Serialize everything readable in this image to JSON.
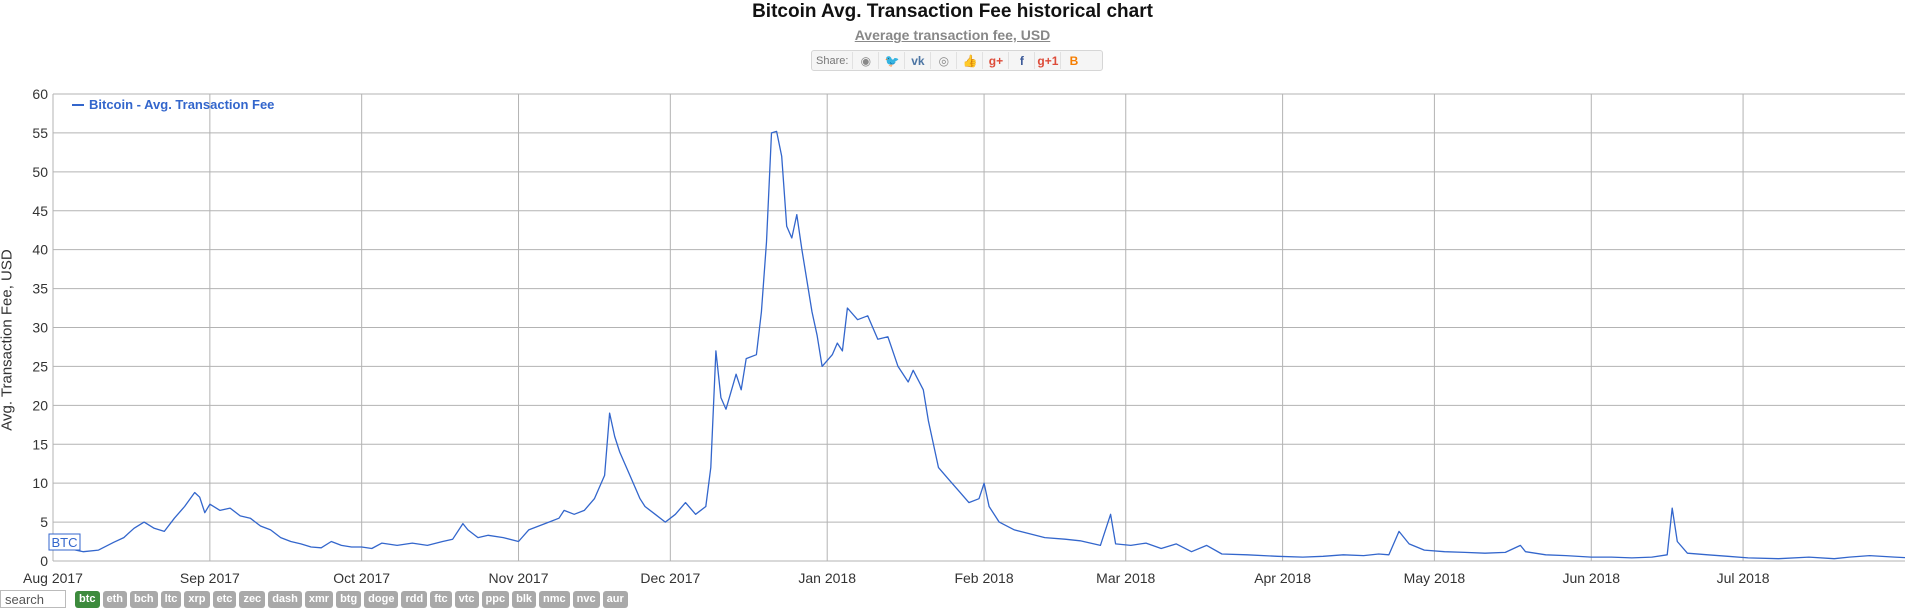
{
  "header": {
    "title": "Bitcoin Avg. Transaction Fee historical chart",
    "subtitle": "Average transaction fee, USD"
  },
  "share": {
    "label": "Share:",
    "buttons": [
      {
        "icon": "reddit-icon",
        "glyph": "◉",
        "color": "#888888"
      },
      {
        "icon": "twitter-icon",
        "glyph": "🐦",
        "color": "#1da1f2"
      },
      {
        "icon": "vk-icon",
        "glyph": "vk",
        "color": "#4c75a3"
      },
      {
        "icon": "weibo-icon",
        "glyph": "◎",
        "color": "#888888"
      },
      {
        "icon": "like-icon",
        "glyph": "👍",
        "color": "#3b5998"
      },
      {
        "icon": "google-plus-icon",
        "glyph": "g+",
        "color": "#dd4b39"
      },
      {
        "icon": "facebook-icon",
        "glyph": "f",
        "color": "#3b5998"
      },
      {
        "icon": "google-plus-one-icon",
        "glyph": "g+1",
        "color": "#dd4b39"
      },
      {
        "icon": "blogger-icon",
        "glyph": "B",
        "color": "#f57d00"
      }
    ]
  },
  "badge": "BTC",
  "search": {
    "placeholder": "search"
  },
  "coins": [
    "btc",
    "eth",
    "bch",
    "ltc",
    "xrp",
    "etc",
    "zec",
    "dash",
    "xmr",
    "btg",
    "doge",
    "rdd",
    "ftc",
    "vtc",
    "ppc",
    "blk",
    "nmc",
    "nvc",
    "aur"
  ],
  "active_coin": "btc",
  "colors": {
    "line": "#3366cc",
    "grid": "#b3b3b3",
    "legend": "#3366cc",
    "active_coin": "#3d8b3d"
  },
  "chart_data": {
    "type": "line",
    "title": "Bitcoin Avg. Transaction Fee historical chart",
    "subtitle": "Average transaction fee, USD",
    "ylabel": "Avg. Transaction Fee, USD",
    "xlabel": "",
    "ylim": [
      0,
      60
    ],
    "yticks": [
      0,
      5,
      10,
      15,
      20,
      25,
      30,
      35,
      40,
      45,
      50,
      55,
      60
    ],
    "xticks": [
      "Aug 2017",
      "Sep 2017",
      "Oct 2017",
      "Nov 2017",
      "Dec 2017",
      "Jan 2018",
      "Feb 2018",
      "Mar 2018",
      "Apr 2018",
      "May 2018",
      "Jun 2018",
      "Jul 2018"
    ],
    "grid": true,
    "legend": "top-left",
    "series": [
      {
        "name": "Bitcoin - Avg. Transaction Fee",
        "points": [
          [
            "2017-08-01",
            2.5
          ],
          [
            "2017-08-04",
            1.6
          ],
          [
            "2017-08-07",
            1.2
          ],
          [
            "2017-08-10",
            1.4
          ],
          [
            "2017-08-13",
            2.4
          ],
          [
            "2017-08-15",
            3.0
          ],
          [
            "2017-08-17",
            4.2
          ],
          [
            "2017-08-19",
            5.0
          ],
          [
            "2017-08-21",
            4.2
          ],
          [
            "2017-08-23",
            3.8
          ],
          [
            "2017-08-25",
            5.5
          ],
          [
            "2017-08-27",
            7.0
          ],
          [
            "2017-08-29",
            8.8
          ],
          [
            "2017-08-30",
            8.2
          ],
          [
            "2017-08-31",
            6.2
          ],
          [
            "2017-09-01",
            7.3
          ],
          [
            "2017-09-03",
            6.5
          ],
          [
            "2017-09-05",
            6.8
          ],
          [
            "2017-09-07",
            5.8
          ],
          [
            "2017-09-09",
            5.5
          ],
          [
            "2017-09-11",
            4.5
          ],
          [
            "2017-09-13",
            4.0
          ],
          [
            "2017-09-15",
            3.0
          ],
          [
            "2017-09-17",
            2.5
          ],
          [
            "2017-09-19",
            2.2
          ],
          [
            "2017-09-21",
            1.8
          ],
          [
            "2017-09-23",
            1.7
          ],
          [
            "2017-09-25",
            2.5
          ],
          [
            "2017-09-27",
            2.0
          ],
          [
            "2017-09-29",
            1.8
          ],
          [
            "2017-10-01",
            1.8
          ],
          [
            "2017-10-03",
            1.6
          ],
          [
            "2017-10-05",
            2.3
          ],
          [
            "2017-10-08",
            2.0
          ],
          [
            "2017-10-11",
            2.3
          ],
          [
            "2017-10-14",
            2.0
          ],
          [
            "2017-10-17",
            2.5
          ],
          [
            "2017-10-19",
            2.8
          ],
          [
            "2017-10-21",
            4.8
          ],
          [
            "2017-10-22",
            4.0
          ],
          [
            "2017-10-24",
            3.0
          ],
          [
            "2017-10-26",
            3.3
          ],
          [
            "2017-10-29",
            3.0
          ],
          [
            "2017-11-01",
            2.5
          ],
          [
            "2017-11-03",
            4.0
          ],
          [
            "2017-11-05",
            4.5
          ],
          [
            "2017-11-07",
            5.0
          ],
          [
            "2017-11-09",
            5.5
          ],
          [
            "2017-11-10",
            6.5
          ],
          [
            "2017-11-12",
            6.0
          ],
          [
            "2017-11-14",
            6.5
          ],
          [
            "2017-11-16",
            8.0
          ],
          [
            "2017-11-18",
            11.0
          ],
          [
            "2017-11-19",
            19.0
          ],
          [
            "2017-11-20",
            16.0
          ],
          [
            "2017-11-21",
            14.0
          ],
          [
            "2017-11-23",
            11.0
          ],
          [
            "2017-11-25",
            8.0
          ],
          [
            "2017-11-26",
            7.0
          ],
          [
            "2017-11-28",
            6.0
          ],
          [
            "2017-11-30",
            5.0
          ],
          [
            "2017-12-02",
            6.0
          ],
          [
            "2017-12-04",
            7.5
          ],
          [
            "2017-12-06",
            6.0
          ],
          [
            "2017-12-08",
            7.0
          ],
          [
            "2017-12-09",
            12.0
          ],
          [
            "2017-12-10",
            27.0
          ],
          [
            "2017-12-11",
            21.0
          ],
          [
            "2017-12-12",
            19.5
          ],
          [
            "2017-12-14",
            24.0
          ],
          [
            "2017-12-15",
            22.0
          ],
          [
            "2017-12-16",
            26.0
          ],
          [
            "2017-12-18",
            26.5
          ],
          [
            "2017-12-19",
            32.0
          ],
          [
            "2017-12-20",
            41.0
          ],
          [
            "2017-12-21",
            55.0
          ],
          [
            "2017-12-22",
            55.2
          ],
          [
            "2017-12-23",
            52.0
          ],
          [
            "2017-12-24",
            43.0
          ],
          [
            "2017-12-25",
            41.5
          ],
          [
            "2017-12-26",
            44.5
          ],
          [
            "2017-12-27",
            40.0
          ],
          [
            "2017-12-29",
            32.0
          ],
          [
            "2017-12-30",
            29.0
          ],
          [
            "2017-12-31",
            25.0
          ],
          [
            "2018-01-02",
            26.5
          ],
          [
            "2018-01-03",
            28.0
          ],
          [
            "2018-01-04",
            27.0
          ],
          [
            "2018-01-05",
            32.5
          ],
          [
            "2018-01-07",
            31.0
          ],
          [
            "2018-01-09",
            31.5
          ],
          [
            "2018-01-11",
            28.5
          ],
          [
            "2018-01-13",
            28.8
          ],
          [
            "2018-01-15",
            25.0
          ],
          [
            "2018-01-17",
            23.0
          ],
          [
            "2018-01-18",
            24.5
          ],
          [
            "2018-01-20",
            22.0
          ],
          [
            "2018-01-21",
            18.0
          ],
          [
            "2018-01-23",
            12.0
          ],
          [
            "2018-01-25",
            10.5
          ],
          [
            "2018-01-27",
            9.0
          ],
          [
            "2018-01-29",
            7.5
          ],
          [
            "2018-01-31",
            8.0
          ],
          [
            "2018-02-01",
            10.0
          ],
          [
            "2018-02-02",
            7.0
          ],
          [
            "2018-02-04",
            5.0
          ],
          [
            "2018-02-07",
            4.0
          ],
          [
            "2018-02-10",
            3.5
          ],
          [
            "2018-02-13",
            3.0
          ],
          [
            "2018-02-17",
            2.8
          ],
          [
            "2018-02-20",
            2.6
          ],
          [
            "2018-02-24",
            2.0
          ],
          [
            "2018-02-26",
            6.0
          ],
          [
            "2018-02-27",
            2.2
          ],
          [
            "2018-03-02",
            2.0
          ],
          [
            "2018-03-05",
            2.3
          ],
          [
            "2018-03-08",
            1.6
          ],
          [
            "2018-03-11",
            2.2
          ],
          [
            "2018-03-14",
            1.2
          ],
          [
            "2018-03-17",
            2.0
          ],
          [
            "2018-03-20",
            0.9
          ],
          [
            "2018-03-25",
            0.8
          ],
          [
            "2018-03-31",
            0.6
          ],
          [
            "2018-04-05",
            0.5
          ],
          [
            "2018-04-09",
            0.6
          ],
          [
            "2018-04-13",
            0.8
          ],
          [
            "2018-04-17",
            0.7
          ],
          [
            "2018-04-20",
            0.9
          ],
          [
            "2018-04-22",
            0.8
          ],
          [
            "2018-04-24",
            3.8
          ],
          [
            "2018-04-26",
            2.2
          ],
          [
            "2018-04-29",
            1.4
          ],
          [
            "2018-05-03",
            1.2
          ],
          [
            "2018-05-07",
            1.1
          ],
          [
            "2018-05-11",
            1.0
          ],
          [
            "2018-05-15",
            1.1
          ],
          [
            "2018-05-18",
            2.0
          ],
          [
            "2018-05-19",
            1.2
          ],
          [
            "2018-05-23",
            0.8
          ],
          [
            "2018-05-27",
            0.7
          ],
          [
            "2018-06-01",
            0.5
          ],
          [
            "2018-06-05",
            0.5
          ],
          [
            "2018-06-09",
            0.4
          ],
          [
            "2018-06-13",
            0.5
          ],
          [
            "2018-06-16",
            0.8
          ],
          [
            "2018-06-17",
            6.8
          ],
          [
            "2018-06-18",
            2.5
          ],
          [
            "2018-06-20",
            1.0
          ],
          [
            "2018-06-24",
            0.8
          ],
          [
            "2018-06-28",
            0.6
          ],
          [
            "2018-07-02",
            0.4
          ],
          [
            "2018-07-08",
            0.3
          ],
          [
            "2018-07-14",
            0.5
          ],
          [
            "2018-07-19",
            0.3
          ],
          [
            "2018-07-22",
            0.5
          ],
          [
            "2018-07-26",
            0.7
          ],
          [
            "2018-07-31",
            0.5
          ],
          [
            "2018-08-03",
            0.4
          ]
        ]
      }
    ]
  }
}
